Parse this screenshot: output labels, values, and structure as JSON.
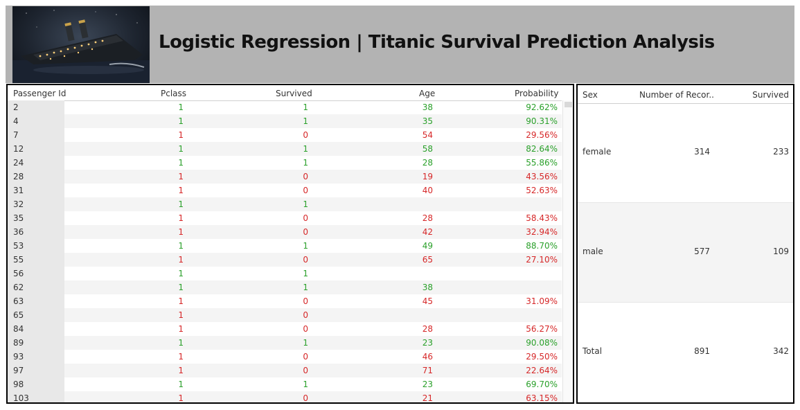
{
  "header": {
    "title": "Logistic Regression | Titanic Survival Prediction Analysis",
    "image_alt": "sinking ship"
  },
  "passenger_table": {
    "columns": [
      "Passenger Id",
      "Pclass",
      "Survived",
      "Age",
      "Probability"
    ],
    "rows": [
      {
        "id": "2",
        "pclass": "1",
        "survived": "1",
        "age": "38",
        "prob": "92.62%",
        "status": "green"
      },
      {
        "id": "4",
        "pclass": "1",
        "survived": "1",
        "age": "35",
        "prob": "90.31%",
        "status": "green"
      },
      {
        "id": "7",
        "pclass": "1",
        "survived": "0",
        "age": "54",
        "prob": "29.56%",
        "status": "red"
      },
      {
        "id": "12",
        "pclass": "1",
        "survived": "1",
        "age": "58",
        "prob": "82.64%",
        "status": "green"
      },
      {
        "id": "24",
        "pclass": "1",
        "survived": "1",
        "age": "28",
        "prob": "55.86%",
        "status": "green"
      },
      {
        "id": "28",
        "pclass": "1",
        "survived": "0",
        "age": "19",
        "prob": "43.56%",
        "status": "red"
      },
      {
        "id": "31",
        "pclass": "1",
        "survived": "0",
        "age": "40",
        "prob": "52.63%",
        "status": "red"
      },
      {
        "id": "32",
        "pclass": "1",
        "survived": "1",
        "age": "",
        "prob": "",
        "status": "green"
      },
      {
        "id": "35",
        "pclass": "1",
        "survived": "0",
        "age": "28",
        "prob": "58.43%",
        "status": "red"
      },
      {
        "id": "36",
        "pclass": "1",
        "survived": "0",
        "age": "42",
        "prob": "32.94%",
        "status": "red"
      },
      {
        "id": "53",
        "pclass": "1",
        "survived": "1",
        "age": "49",
        "prob": "88.70%",
        "status": "green"
      },
      {
        "id": "55",
        "pclass": "1",
        "survived": "0",
        "age": "65",
        "prob": "27.10%",
        "status": "red"
      },
      {
        "id": "56",
        "pclass": "1",
        "survived": "1",
        "age": "",
        "prob": "",
        "status": "green"
      },
      {
        "id": "62",
        "pclass": "1",
        "survived": "1",
        "age": "38",
        "prob": "",
        "status": "green"
      },
      {
        "id": "63",
        "pclass": "1",
        "survived": "0",
        "age": "45",
        "prob": "31.09%",
        "status": "red"
      },
      {
        "id": "65",
        "pclass": "1",
        "survived": "0",
        "age": "",
        "prob": "",
        "status": "red"
      },
      {
        "id": "84",
        "pclass": "1",
        "survived": "0",
        "age": "28",
        "prob": "56.27%",
        "status": "red"
      },
      {
        "id": "89",
        "pclass": "1",
        "survived": "1",
        "age": "23",
        "prob": "90.08%",
        "status": "green"
      },
      {
        "id": "93",
        "pclass": "1",
        "survived": "0",
        "age": "46",
        "prob": "29.50%",
        "status": "red"
      },
      {
        "id": "97",
        "pclass": "1",
        "survived": "0",
        "age": "71",
        "prob": "22.64%",
        "status": "red"
      },
      {
        "id": "98",
        "pclass": "1",
        "survived": "1",
        "age": "23",
        "prob": "69.70%",
        "status": "green"
      },
      {
        "id": "103",
        "pclass": "1",
        "survived": "0",
        "age": "21",
        "prob": "63.15%",
        "status": "red"
      }
    ]
  },
  "summary_table": {
    "columns": [
      "Sex",
      "Number of Recor..",
      "Survived"
    ],
    "rows": [
      {
        "sex": "female",
        "records": "314",
        "survived": "233"
      },
      {
        "sex": "male",
        "records": "577",
        "survived": "109"
      },
      {
        "sex": "Total",
        "records": "891",
        "survived": "342"
      }
    ]
  },
  "colors": {
    "header_bg": "#b3b3b3",
    "survived_color": "#2aa02a",
    "not_survived_color": "#d62728"
  }
}
